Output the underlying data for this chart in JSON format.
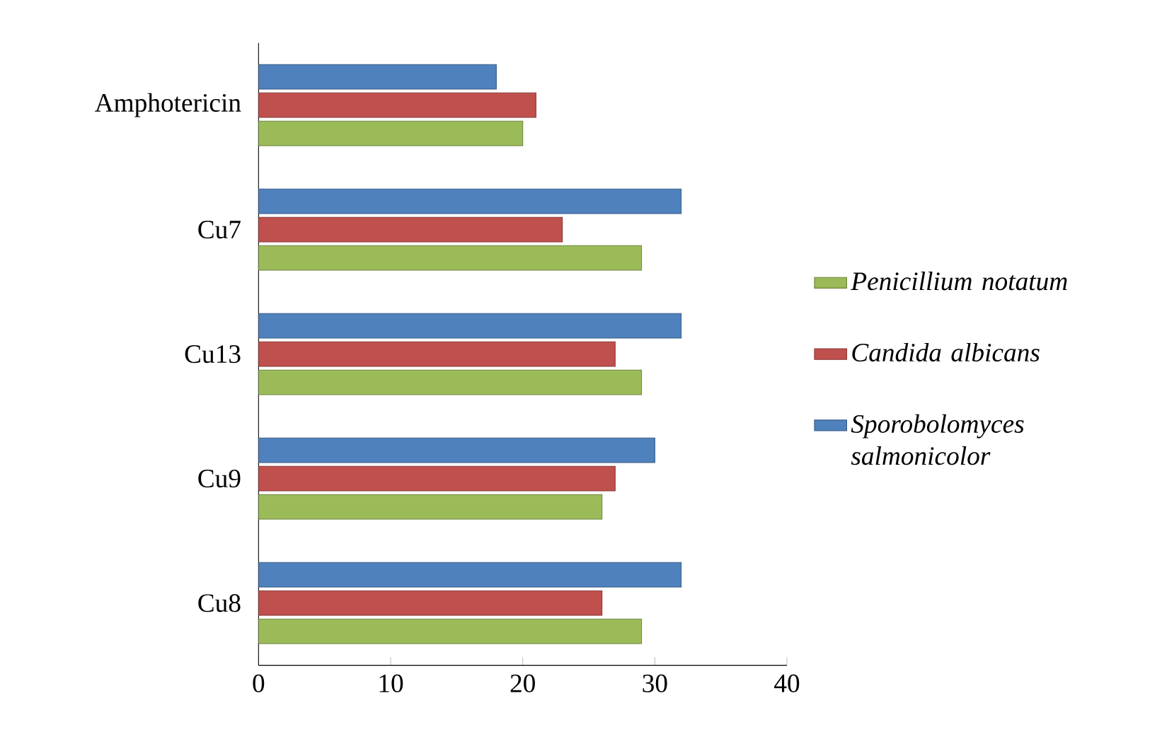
{
  "chart_data": {
    "type": "bar",
    "orientation": "horizontal",
    "categories": [
      "Amphotericin",
      "Cu7",
      "Cu13",
      "Cu9",
      "Cu8"
    ],
    "series": [
      {
        "name": "Penicillium notatum",
        "color": "#9bbb59",
        "values": [
          20,
          29,
          29,
          26,
          29
        ]
      },
      {
        "name": "Candida albicans",
        "color": "#c0504d",
        "values": [
          21,
          23,
          27,
          27,
          26
        ]
      },
      {
        "name": "Sporobolomyces salmonicolor",
        "color": "#4f81bd",
        "values": [
          18,
          32,
          32,
          30,
          32
        ]
      }
    ],
    "xlim": [
      0,
      40
    ],
    "xticks": [
      0,
      10,
      20,
      30,
      40
    ],
    "grid": false,
    "legend": "right"
  }
}
